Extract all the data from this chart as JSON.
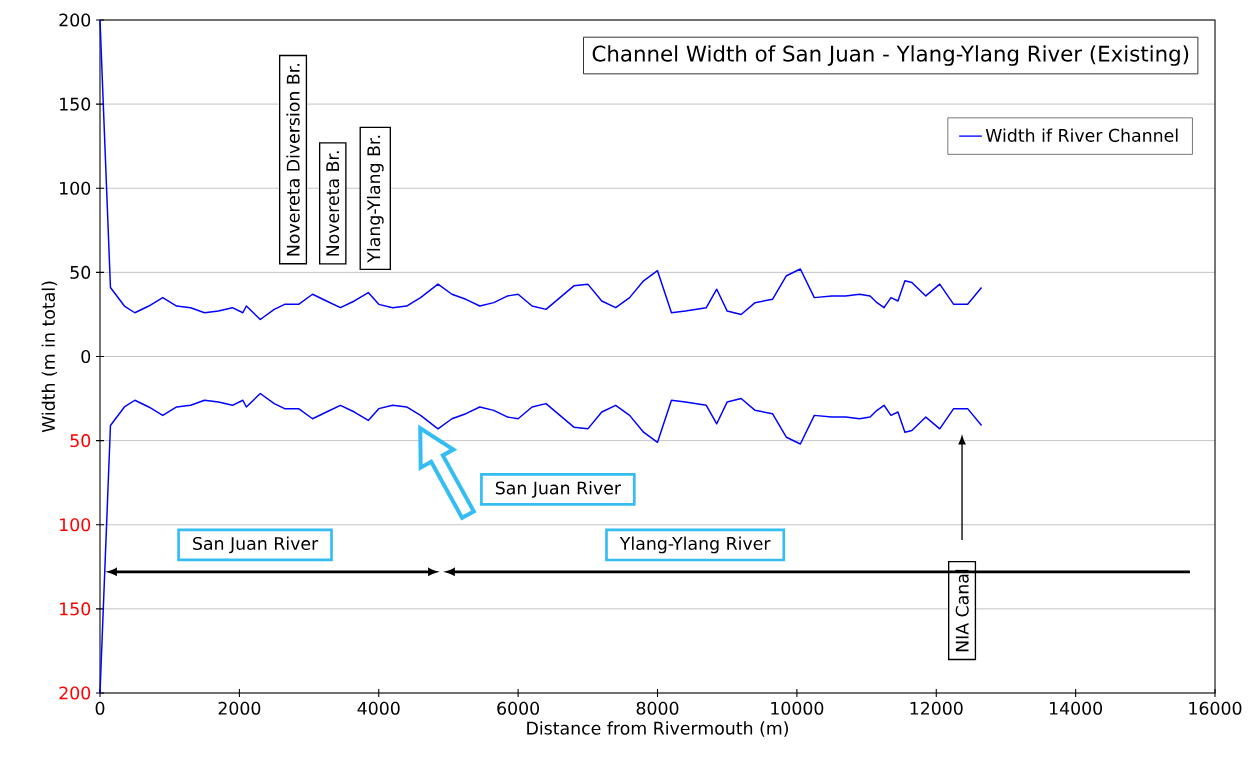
{
  "chart_data": {
    "type": "line",
    "title": "Channel Width of San Juan - Ylang-Ylang River (Existing)",
    "xlabel": "Distance from Rivermouth (m)",
    "ylabel": "Width (m in total)",
    "x": [
      0,
      150,
      350,
      500,
      700,
      900,
      1100,
      1300,
      1500,
      1700,
      1900,
      2050,
      2100,
      2300,
      2500,
      2650,
      2850,
      3050,
      3250,
      3450,
      3650,
      3850,
      4000,
      4200,
      4400,
      4600,
      4850,
      5050,
      5250,
      5450,
      5650,
      5850,
      6000,
      6200,
      6400,
      6600,
      6800,
      7000,
      7200,
      7400,
      7600,
      7800,
      8000,
      8200,
      8400,
      8700,
      8850,
      9000,
      9200,
      9400,
      9650,
      9850,
      10050,
      10250,
      10500,
      10700,
      10900,
      11050,
      11150,
      11250,
      11350,
      11450,
      11550,
      11650,
      11850,
      12050,
      12250,
      12450,
      12650
    ],
    "series": [
      {
        "name": "Width if River Channel",
        "color": "#0000ff",
        "values": [
          200,
          41,
          30,
          26,
          30,
          35,
          30,
          29,
          26,
          27,
          29,
          26,
          30,
          22,
          28,
          31,
          31,
          37,
          33,
          29,
          33,
          38,
          31,
          29,
          30,
          35,
          43,
          37,
          34,
          30,
          32,
          36,
          37,
          30,
          28,
          35,
          42,
          43,
          33,
          29,
          35,
          45,
          51,
          26,
          27,
          29,
          40,
          27,
          25,
          32,
          34,
          48,
          52,
          35,
          36,
          36,
          37,
          36,
          32,
          29,
          35,
          33,
          45,
          44,
          36,
          43,
          31,
          31,
          41
        ]
      },
      {
        "color": "#0000ff",
        "values": [
          -200,
          -41,
          -30,
          -26,
          -30,
          -35,
          -30,
          -29,
          -26,
          -27,
          -29,
          -26,
          -30,
          -22,
          -28,
          -31,
          -31,
          -37,
          -33,
          -29,
          -33,
          -38,
          -31,
          -29,
          -30,
          -35,
          -43,
          -37,
          -34,
          -30,
          -32,
          -36,
          -37,
          -30,
          -28,
          -35,
          -42,
          -43,
          -33,
          -29,
          -35,
          -45,
          -51,
          -26,
          -27,
          -29,
          -40,
          -27,
          -25,
          -32,
          -34,
          -48,
          -52,
          -35,
          -36,
          -36,
          -37,
          -36,
          -32,
          -29,
          -35,
          -33,
          -45,
          -44,
          -36,
          -43,
          -31,
          -31,
          -41
        ]
      }
    ],
    "xlim": [
      0,
      16000
    ],
    "xticks": [
      0,
      2000,
      4000,
      6000,
      8000,
      10000,
      12000,
      14000,
      16000
    ],
    "ylim": [
      -200,
      200
    ],
    "yticks": [
      {
        "value": -200,
        "label": "200"
      },
      {
        "value": -150,
        "label": "150"
      },
      {
        "value": -100,
        "label": "100"
      },
      {
        "value": -50,
        "label": "50"
      },
      0,
      50,
      100,
      150,
      200
    ],
    "grid": "y",
    "legend": "top right",
    "marker": "none",
    "line_style": "solid",
    "annotations": [
      "Novereta Diversion Br.",
      "Novereta Br.",
      "Ylang-Ylang Br.",
      "San Juan River",
      "San Juan River",
      "Ylang-Ylang River",
      "NIA Canal"
    ]
  }
}
